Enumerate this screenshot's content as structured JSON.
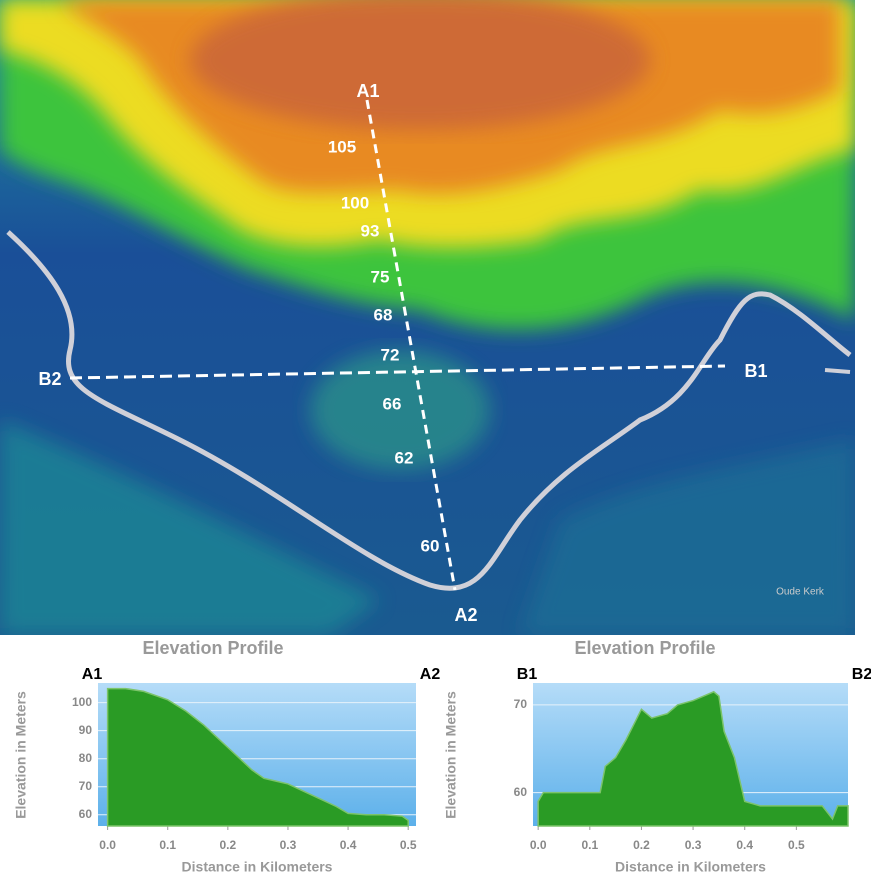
{
  "map": {
    "points": {
      "a1": "A1",
      "a2": "A2",
      "b1": "B1",
      "b2": "B2"
    },
    "elevation_labels": [
      105,
      100,
      93,
      75,
      68,
      72,
      66,
      62,
      60
    ],
    "attribution": "Oude Kerk"
  },
  "chart_data": [
    {
      "type": "area",
      "title": "Elevation Profile",
      "xlabel": "Distance in Kilometers",
      "ylabel": "Elevation in Meters",
      "start_label": "A1",
      "end_label": "A2",
      "color": "#2a9b25",
      "grid": true,
      "x": [
        0,
        0.03,
        0.06,
        0.1,
        0.13,
        0.16,
        0.18,
        0.2,
        0.22,
        0.24,
        0.26,
        0.28,
        0.3,
        0.32,
        0.35,
        0.38,
        0.4,
        0.43,
        0.46,
        0.49,
        0.5
      ],
      "values": [
        105,
        105,
        104,
        101,
        97,
        92,
        88,
        84,
        80,
        76,
        73,
        72,
        71,
        69,
        66,
        63,
        60.5,
        60,
        60,
        59.5,
        58
      ],
      "xlim": [
        -0.016,
        0.513
      ],
      "ylim": [
        56,
        107
      ],
      "xticks": [
        {
          "value": 0,
          "label": "0.0"
        },
        0.1,
        0.2,
        0.3,
        0.4,
        0.5
      ],
      "yticks": [
        60,
        70,
        80,
        90,
        100
      ]
    },
    {
      "type": "area",
      "title": "Elevation Profile",
      "xlabel": "Distance in Kilometers",
      "ylabel": "Elevation in Meters",
      "start_label": "B1",
      "end_label": "B2",
      "color": "#2a9b25",
      "grid": true,
      "x": [
        0,
        0.01,
        0.05,
        0.1,
        0.12,
        0.13,
        0.15,
        0.17,
        0.2,
        0.22,
        0.25,
        0.27,
        0.3,
        0.32,
        0.34,
        0.35,
        0.36,
        0.38,
        0.4,
        0.43,
        0.5,
        0.55,
        0.57,
        0.58,
        0.6
      ],
      "values": [
        59,
        60,
        60,
        60,
        60,
        63,
        64,
        66,
        69.5,
        68.5,
        69,
        70,
        70.5,
        71,
        71.5,
        71,
        67,
        64,
        59,
        58.5,
        58.5,
        58.5,
        57,
        58.5,
        58.5
      ],
      "xlim": [
        -0.01,
        0.6
      ],
      "ylim": [
        56.2,
        72.5
      ],
      "xticks": [
        {
          "value": 0,
          "label": "0.0"
        },
        0.1,
        0.2,
        0.3,
        0.4,
        0.5
      ],
      "yticks": [
        60,
        70
      ]
    }
  ]
}
